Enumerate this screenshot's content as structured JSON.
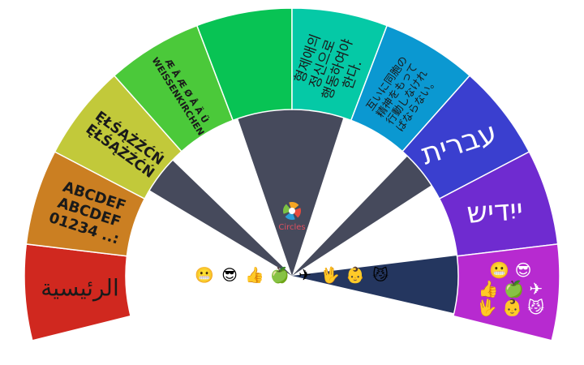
{
  "center_label": "Circles",
  "segments": [
    {
      "color": "#d0281f",
      "lines": [
        "الرئيسية"
      ]
    },
    {
      "color": "#cb7f22",
      "lines": [
        "ABCDEF",
        "ABCDEF",
        "01234 ..:"
      ]
    },
    {
      "color": "#c2c93a",
      "lines": [
        "ĘŁŚĄŻŹĆŃ",
        "ĘŁŚĄŻŹĆŃ"
      ]
    },
    {
      "color": "#4bc93a",
      "lines": [
        "Æ Å Æ Ø Å Ä Ü",
        "WEISSENKIRCHEN"
      ]
    },
    {
      "color": "#08c354"
    },
    {
      "color": "#05c9a6",
      "lines": [
        "형제애의",
        "정신으로",
        "행동하여야",
        "한다."
      ]
    },
    {
      "color": "#0b98d1",
      "lines": [
        "互いに同胞の",
        "精神をもって",
        "行動しなけれ",
        "ばならない。"
      ]
    },
    {
      "color": "#3a3fcf",
      "lines": [
        "עברית"
      ]
    },
    {
      "color": "#6f2bd0",
      "lines": [
        "ייִדיש"
      ]
    },
    {
      "color": "#b72ad0",
      "lines": [
        "😬 😎",
        "👍 🍏 ✈",
        "🖖 👶 😼"
      ]
    }
  ],
  "emoji_row": [
    "😬",
    "😎",
    "👍",
    "🍏",
    "✈",
    "🖖",
    "👶",
    "😼"
  ]
}
